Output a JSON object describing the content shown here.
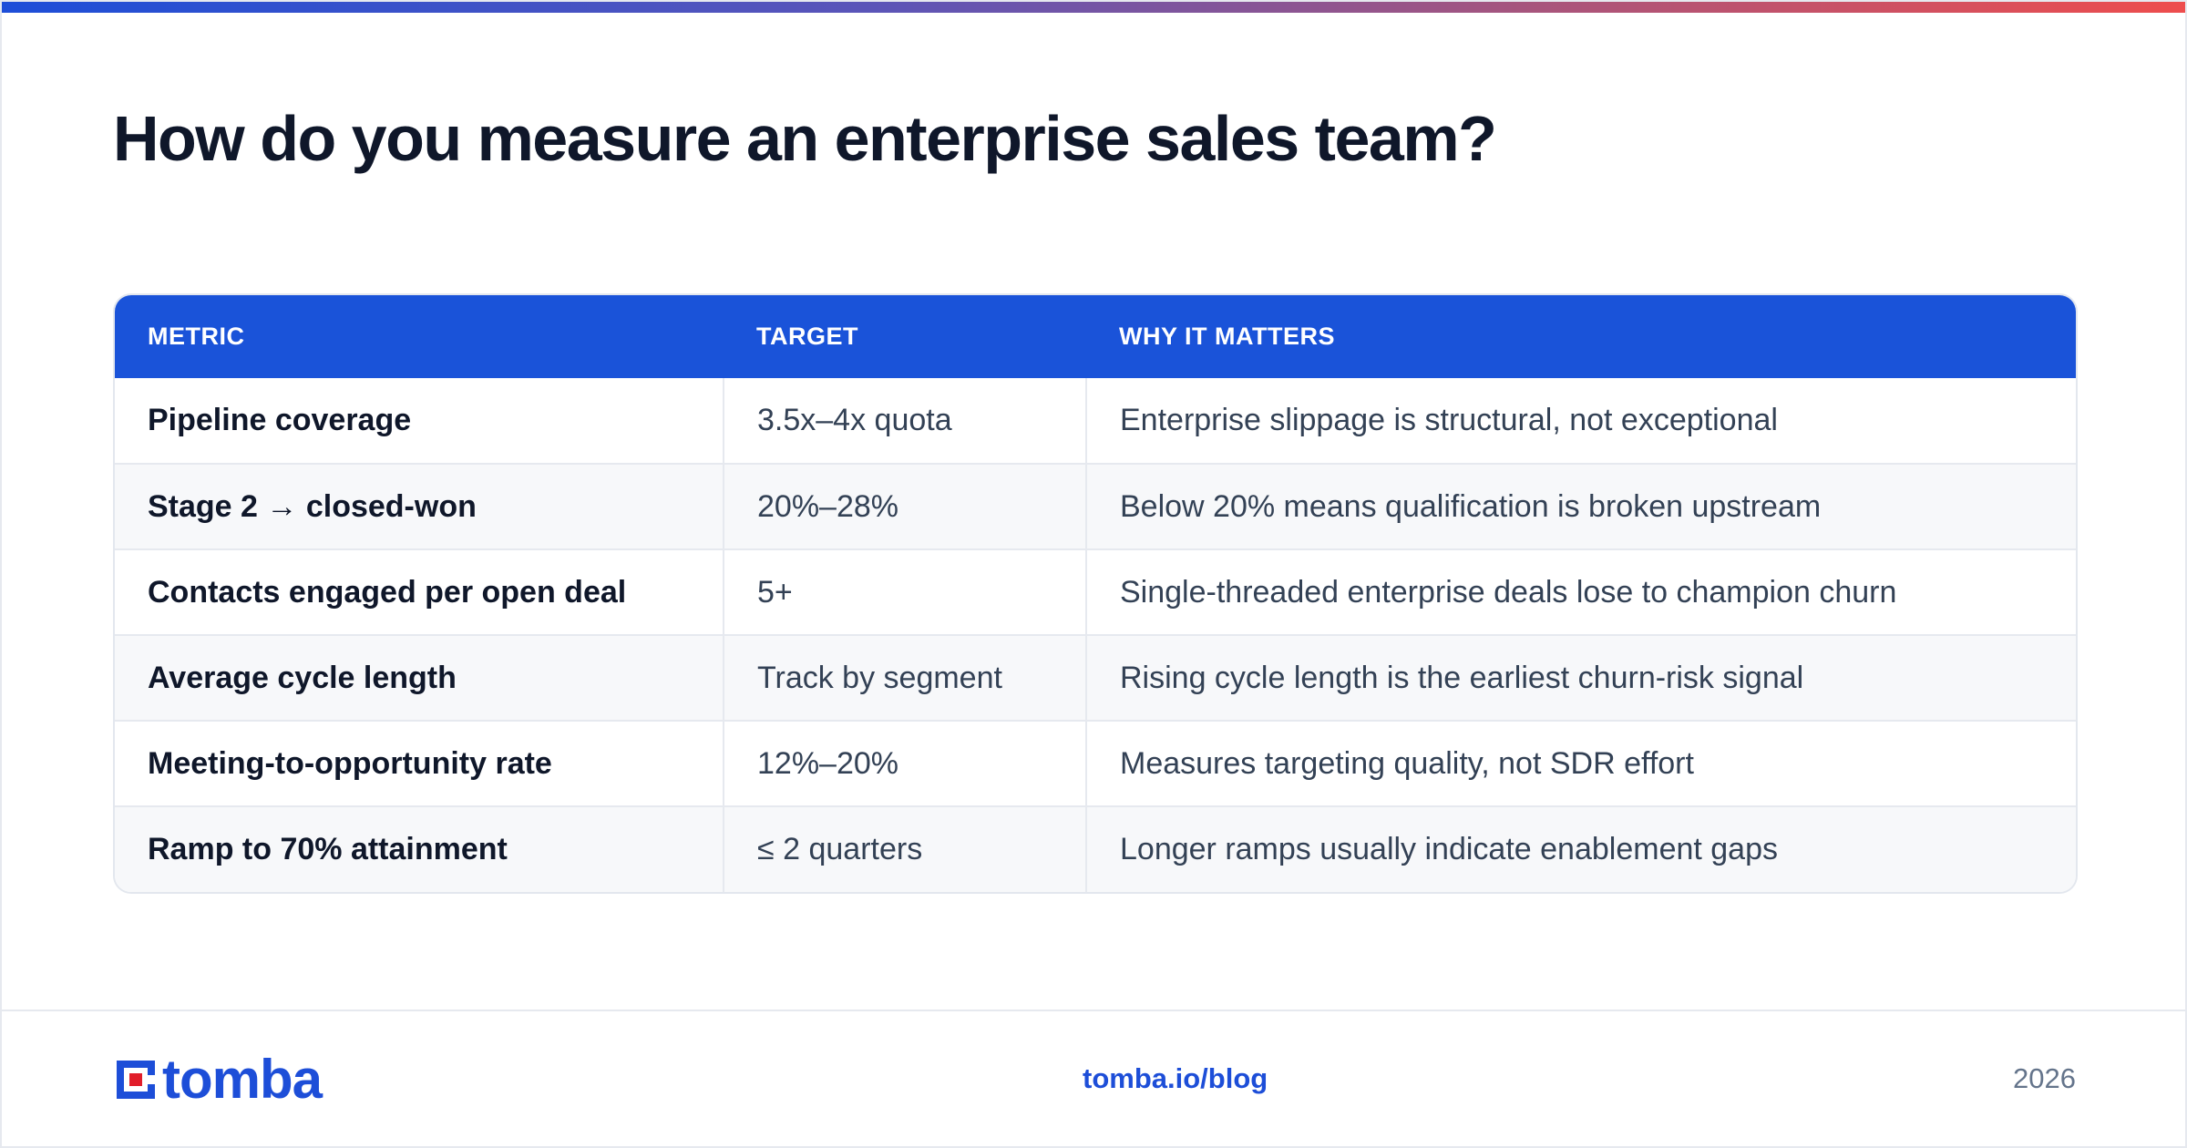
{
  "accent": {
    "primary": "#1a53d9",
    "gradient_start": "#1d4ed8",
    "gradient_end": "#ee4d4d",
    "logo_red": "#e11d2a"
  },
  "title": "How do you measure an enterprise sales team?",
  "table": {
    "headers": [
      "METRIC",
      "TARGET",
      "WHY IT MATTERS"
    ],
    "rows": [
      {
        "metric": "Pipeline coverage",
        "target": "3.5x–4x quota",
        "why": "Enterprise slippage is structural, not exceptional"
      },
      {
        "metric": "Stage 2 → closed-won",
        "target": "20%–28%",
        "why": "Below 20% means qualification is broken upstream"
      },
      {
        "metric": "Contacts engaged per open deal",
        "target": "5+",
        "why": "Single-threaded enterprise deals lose to champion churn"
      },
      {
        "metric": "Average cycle length",
        "target": "Track by segment",
        "why": "Rising cycle length is the earliest churn-risk signal"
      },
      {
        "metric": "Meeting-to-opportunity rate",
        "target": "12%–20%",
        "why": "Measures targeting quality, not SDR effort"
      },
      {
        "metric": "Ramp to 70% attainment",
        "target": "≤ 2 quarters",
        "why": "Longer ramps usually indicate enablement gaps"
      }
    ]
  },
  "footer": {
    "logo_text": "tomba",
    "logo_icon": "tomba-logo-icon",
    "link": "tomba.io/blog",
    "year": "2026"
  }
}
